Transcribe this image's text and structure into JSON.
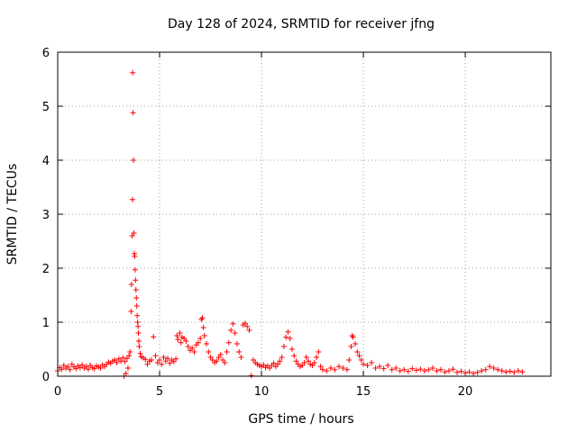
{
  "chart_data": {
    "type": "scatter",
    "title": "Day 128 of 2024, SRMTID for receiver jfng",
    "xlabel": "GPS time / hours",
    "ylabel": "SRMTID / TECUs",
    "xlim": [
      0,
      24.2
    ],
    "ylim": [
      0,
      6
    ],
    "xticks": [
      0,
      5,
      10,
      15,
      20
    ],
    "yticks": [
      0,
      1,
      2,
      3,
      4,
      5,
      6
    ],
    "grid": true,
    "marker": "+",
    "marker_color": "#ff0000",
    "series": [
      {
        "name": "SRMTID",
        "points": [
          [
            0.0,
            0.1
          ],
          [
            0.1,
            0.16
          ],
          [
            0.2,
            0.13
          ],
          [
            0.3,
            0.2
          ],
          [
            0.4,
            0.15
          ],
          [
            0.5,
            0.18
          ],
          [
            0.6,
            0.12
          ],
          [
            0.7,
            0.22
          ],
          [
            0.8,
            0.17
          ],
          [
            0.9,
            0.14
          ],
          [
            1.0,
            0.19
          ],
          [
            1.1,
            0.16
          ],
          [
            1.2,
            0.21
          ],
          [
            1.3,
            0.15
          ],
          [
            1.4,
            0.18
          ],
          [
            1.5,
            0.13
          ],
          [
            1.6,
            0.2
          ],
          [
            1.7,
            0.16
          ],
          [
            1.8,
            0.14
          ],
          [
            1.9,
            0.19
          ],
          [
            2.0,
            0.17
          ],
          [
            2.1,
            0.15
          ],
          [
            2.2,
            0.21
          ],
          [
            2.3,
            0.18
          ],
          [
            2.4,
            0.22
          ],
          [
            2.5,
            0.26
          ],
          [
            2.6,
            0.24
          ],
          [
            2.7,
            0.28
          ],
          [
            2.8,
            0.3
          ],
          [
            2.9,
            0.25
          ],
          [
            3.0,
            0.32
          ],
          [
            3.1,
            0.28
          ],
          [
            3.2,
            0.34
          ],
          [
            3.25,
            0.0
          ],
          [
            3.3,
            0.27
          ],
          [
            3.35,
            0.05
          ],
          [
            3.4,
            0.33
          ],
          [
            3.45,
            0.15
          ],
          [
            3.5,
            0.38
          ],
          [
            3.55,
            0.45
          ],
          [
            3.6,
            1.2
          ],
          [
            3.62,
            1.7
          ],
          [
            3.65,
            2.6
          ],
          [
            3.67,
            3.27
          ],
          [
            3.68,
            5.62
          ],
          [
            3.7,
            4.88
          ],
          [
            3.72,
            4.0
          ],
          [
            3.74,
            2.65
          ],
          [
            3.76,
            2.27
          ],
          [
            3.78,
            2.22
          ],
          [
            3.8,
            1.97
          ],
          [
            3.82,
            1.78
          ],
          [
            3.84,
            1.6
          ],
          [
            3.86,
            1.45
          ],
          [
            3.88,
            1.3
          ],
          [
            3.9,
            1.12
          ],
          [
            3.92,
            1.0
          ],
          [
            3.94,
            0.92
          ],
          [
            3.96,
            0.8
          ],
          [
            3.98,
            0.65
          ],
          [
            4.0,
            0.55
          ],
          [
            4.05,
            0.42
          ],
          [
            4.1,
            0.36
          ],
          [
            4.2,
            0.34
          ],
          [
            4.3,
            0.31
          ],
          [
            4.4,
            0.22
          ],
          [
            4.5,
            0.28
          ],
          [
            4.6,
            0.3
          ],
          [
            4.7,
            0.73
          ],
          [
            4.8,
            0.38
          ],
          [
            4.9,
            0.25
          ],
          [
            5.0,
            0.3
          ],
          [
            5.1,
            0.22
          ],
          [
            5.2,
            0.35
          ],
          [
            5.3,
            0.28
          ],
          [
            5.4,
            0.33
          ],
          [
            5.5,
            0.24
          ],
          [
            5.6,
            0.3
          ],
          [
            5.7,
            0.27
          ],
          [
            5.8,
            0.32
          ],
          [
            5.85,
            0.75
          ],
          [
            5.9,
            0.68
          ],
          [
            6.0,
            0.8
          ],
          [
            6.05,
            0.62
          ],
          [
            6.1,
            0.72
          ],
          [
            6.2,
            0.7
          ],
          [
            6.3,
            0.65
          ],
          [
            6.4,
            0.55
          ],
          [
            6.5,
            0.48
          ],
          [
            6.6,
            0.52
          ],
          [
            6.7,
            0.45
          ],
          [
            6.8,
            0.58
          ],
          [
            6.9,
            0.62
          ],
          [
            7.0,
            0.7
          ],
          [
            7.05,
            1.05
          ],
          [
            7.1,
            1.08
          ],
          [
            7.15,
            0.9
          ],
          [
            7.2,
            0.75
          ],
          [
            7.3,
            0.6
          ],
          [
            7.4,
            0.45
          ],
          [
            7.5,
            0.35
          ],
          [
            7.6,
            0.3
          ],
          [
            7.7,
            0.25
          ],
          [
            7.8,
            0.28
          ],
          [
            7.9,
            0.35
          ],
          [
            8.0,
            0.4
          ],
          [
            8.1,
            0.3
          ],
          [
            8.2,
            0.25
          ],
          [
            8.3,
            0.45
          ],
          [
            8.4,
            0.62
          ],
          [
            8.5,
            0.85
          ],
          [
            8.6,
            0.97
          ],
          [
            8.7,
            0.8
          ],
          [
            8.8,
            0.6
          ],
          [
            8.9,
            0.45
          ],
          [
            9.0,
            0.35
          ],
          [
            9.1,
            0.95
          ],
          [
            9.2,
            0.98
          ],
          [
            9.3,
            0.92
          ],
          [
            9.4,
            0.85
          ],
          [
            9.5,
            0.01
          ],
          [
            9.6,
            0.3
          ],
          [
            9.7,
            0.25
          ],
          [
            9.8,
            0.22
          ],
          [
            9.9,
            0.2
          ],
          [
            10.0,
            0.18
          ],
          [
            10.1,
            0.21
          ],
          [
            10.2,
            0.16
          ],
          [
            10.3,
            0.19
          ],
          [
            10.4,
            0.15
          ],
          [
            10.5,
            0.2
          ],
          [
            10.6,
            0.24
          ],
          [
            10.7,
            0.18
          ],
          [
            10.8,
            0.22
          ],
          [
            10.9,
            0.28
          ],
          [
            11.0,
            0.35
          ],
          [
            11.1,
            0.55
          ],
          [
            11.2,
            0.72
          ],
          [
            11.3,
            0.82
          ],
          [
            11.4,
            0.7
          ],
          [
            11.5,
            0.5
          ],
          [
            11.6,
            0.38
          ],
          [
            11.7,
            0.28
          ],
          [
            11.8,
            0.22
          ],
          [
            11.9,
            0.18
          ],
          [
            12.0,
            0.2
          ],
          [
            12.1,
            0.25
          ],
          [
            12.2,
            0.35
          ],
          [
            12.3,
            0.28
          ],
          [
            12.4,
            0.22
          ],
          [
            12.5,
            0.2
          ],
          [
            12.6,
            0.25
          ],
          [
            12.7,
            0.35
          ],
          [
            12.8,
            0.45
          ],
          [
            12.9,
            0.18
          ],
          [
            13.0,
            0.12
          ],
          [
            13.2,
            0.1
          ],
          [
            13.4,
            0.15
          ],
          [
            13.6,
            0.12
          ],
          [
            13.8,
            0.18
          ],
          [
            14.0,
            0.15
          ],
          [
            14.2,
            0.12
          ],
          [
            14.3,
            0.3
          ],
          [
            14.4,
            0.55
          ],
          [
            14.45,
            0.75
          ],
          [
            14.5,
            0.72
          ],
          [
            14.6,
            0.6
          ],
          [
            14.7,
            0.45
          ],
          [
            14.8,
            0.38
          ],
          [
            14.9,
            0.3
          ],
          [
            15.0,
            0.22
          ],
          [
            15.2,
            0.2
          ],
          [
            15.4,
            0.25
          ],
          [
            15.6,
            0.15
          ],
          [
            15.8,
            0.18
          ],
          [
            16.0,
            0.14
          ],
          [
            16.2,
            0.2
          ],
          [
            16.4,
            0.12
          ],
          [
            16.6,
            0.15
          ],
          [
            16.8,
            0.1
          ],
          [
            17.0,
            0.12
          ],
          [
            17.2,
            0.09
          ],
          [
            17.4,
            0.14
          ],
          [
            17.6,
            0.11
          ],
          [
            17.8,
            0.13
          ],
          [
            18.0,
            0.1
          ],
          [
            18.2,
            0.12
          ],
          [
            18.4,
            0.15
          ],
          [
            18.6,
            0.1
          ],
          [
            18.8,
            0.12
          ],
          [
            19.0,
            0.08
          ],
          [
            19.2,
            0.1
          ],
          [
            19.4,
            0.13
          ],
          [
            19.6,
            0.07
          ],
          [
            19.8,
            0.09
          ],
          [
            20.0,
            0.06
          ],
          [
            20.2,
            0.08
          ],
          [
            20.4,
            0.05
          ],
          [
            20.6,
            0.07
          ],
          [
            20.8,
            0.1
          ],
          [
            21.0,
            0.12
          ],
          [
            21.2,
            0.18
          ],
          [
            21.4,
            0.15
          ],
          [
            21.6,
            0.12
          ],
          [
            21.8,
            0.1
          ],
          [
            22.0,
            0.08
          ],
          [
            22.2,
            0.09
          ],
          [
            22.4,
            0.07
          ],
          [
            22.6,
            0.1
          ],
          [
            22.8,
            0.08
          ]
        ]
      }
    ]
  }
}
